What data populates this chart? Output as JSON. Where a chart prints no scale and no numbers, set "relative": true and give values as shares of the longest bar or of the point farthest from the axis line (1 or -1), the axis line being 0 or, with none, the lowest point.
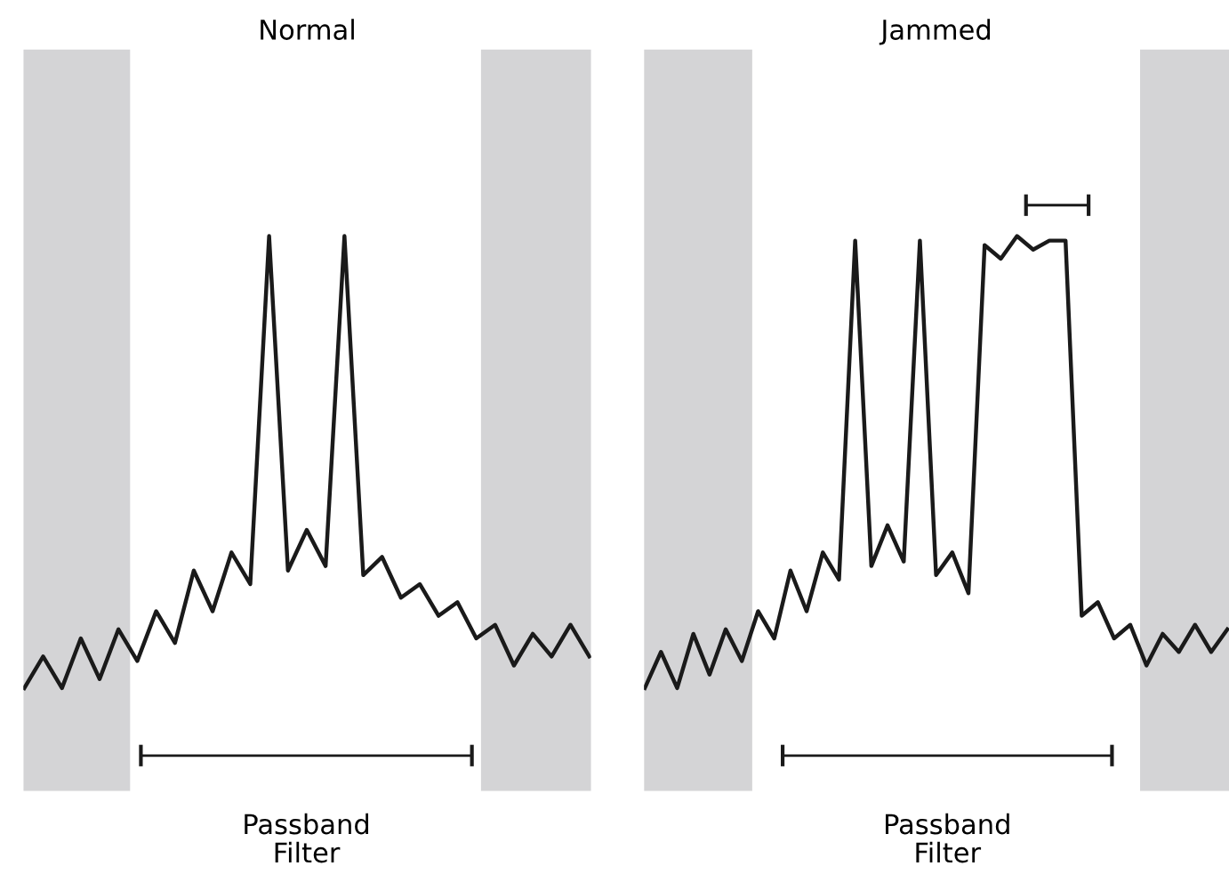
{
  "chart_data": [
    {
      "type": "line",
      "title": "Normal",
      "relative": true,
      "tick_labels": false,
      "marker": "none",
      "line_style": "solid",
      "categories": [
        null,
        null,
        null,
        null,
        null,
        null,
        null,
        null,
        null,
        null,
        null,
        null,
        null,
        null,
        null,
        null,
        null,
        null,
        null,
        null,
        null,
        null,
        null,
        null,
        null,
        null,
        null,
        null,
        null,
        null,
        null
      ],
      "series": [
        {
          "color": "#1a1a1a",
          "values": [
            0,
            0.07,
            0,
            0.11,
            0.02,
            0.13,
            0.06,
            0.17,
            0.1,
            0.26,
            0.17,
            0.3,
            0.23,
            1,
            0.26,
            0.35,
            0.27,
            1,
            0.25,
            0.29,
            0.2,
            0.23,
            0.16,
            0.19,
            0.11,
            0.14,
            0.05,
            0.12,
            0.07,
            0.14,
            0.07
          ]
        }
      ],
      "annotations": [
        "Passband\nFilter"
      ]
    },
    {
      "type": "line",
      "title": "Jammed",
      "relative": true,
      "tick_labels": false,
      "marker": "none",
      "line_style": "solid",
      "categories": [
        null,
        null,
        null,
        null,
        null,
        null,
        null,
        null,
        null,
        null,
        null,
        null,
        null,
        null,
        null,
        null,
        null,
        null,
        null,
        null,
        null,
        null,
        null,
        null,
        null,
        null,
        null,
        null,
        null,
        null,
        null,
        null,
        null,
        null,
        null,
        null,
        null
      ],
      "series": [
        {
          "color": "#1a1a1a",
          "values": [
            0,
            0.08,
            0,
            0.12,
            0.03,
            0.13,
            0.06,
            0.17,
            0.11,
            0.26,
            0.17,
            0.3,
            0.24,
            0.99,
            0.27,
            0.36,
            0.28,
            0.99,
            0.25,
            0.3,
            0.21,
            0.98,
            0.95,
            1,
            0.97,
            0.99,
            0.99,
            0.16,
            0.19,
            0.11,
            0.14,
            0.05,
            0.12,
            0.08,
            0.14,
            0.08,
            0.13
          ]
        }
      ],
      "annotations": [
        "Passband\nFilter"
      ]
    }
  ]
}
